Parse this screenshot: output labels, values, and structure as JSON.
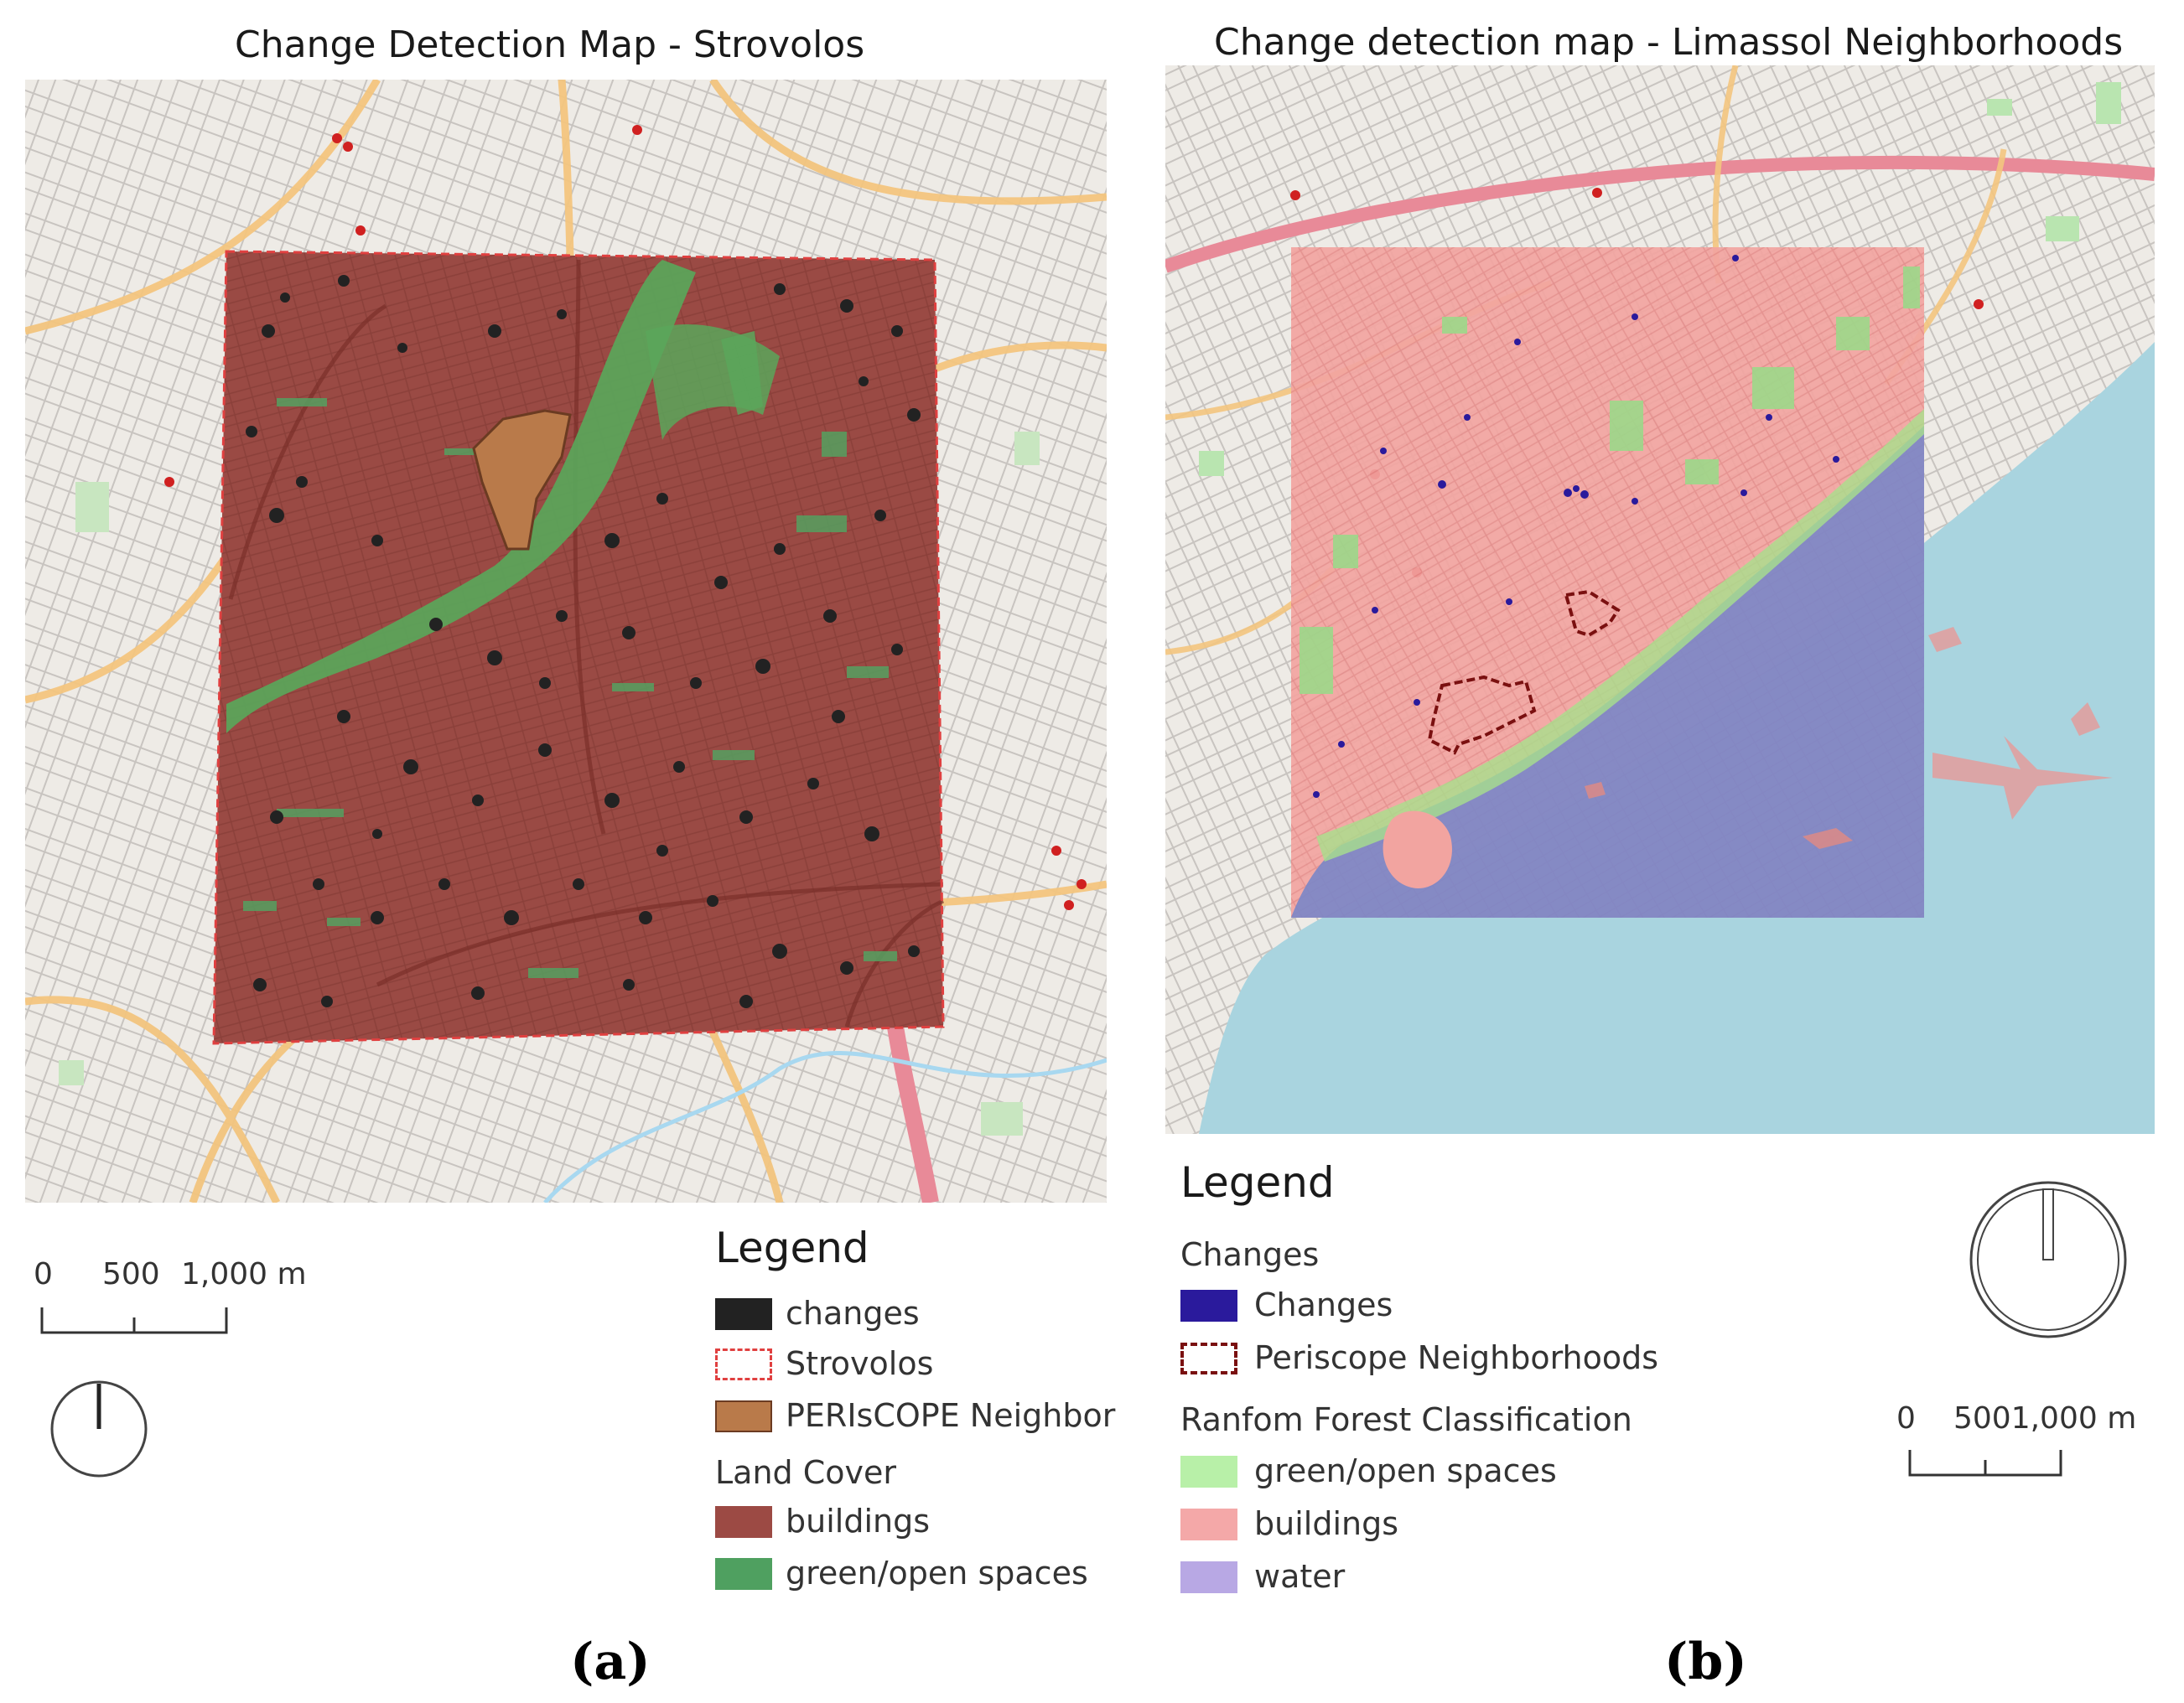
{
  "panel_a": {
    "title": "Change Detection Map - Strovolos",
    "label": "(a)",
    "scale_labels": [
      "0",
      "500",
      "1,000 m"
    ],
    "legend": {
      "title": "Legend",
      "items": [
        {
          "label": "changes",
          "color": "#222222"
        },
        {
          "label": "Strovolos",
          "color": "#e04040"
        },
        {
          "label": "PERIsCOPE Neighbor",
          "color": "#b97a4a"
        }
      ],
      "group_title": "Land Cover",
      "land_cover": [
        {
          "label": "buildings",
          "color": "#9c4a44"
        },
        {
          "label": "green/open spaces",
          "color": "#4fa060"
        }
      ]
    }
  },
  "panel_b": {
    "title": "Change detection map - Limassol Neighborhoods",
    "label": "(b)",
    "scale_labels": [
      "0",
      "5001,000 m"
    ],
    "legend": {
      "title": "Legend",
      "changes_group": "Changes",
      "changes_items": [
        {
          "label": "Changes",
          "color": "#2a1a9c"
        },
        {
          "label": "Periscope Neighborhoods",
          "color": "#7a1010"
        }
      ],
      "rf_group": "Ranfom Forest Classification",
      "rf_items": [
        {
          "label": "green/open spaces",
          "color": "#b8f0a8"
        },
        {
          "label": "buildings",
          "color": "#f4a8a8"
        },
        {
          "label": "water",
          "color": "#b8a8e4"
        }
      ]
    }
  }
}
